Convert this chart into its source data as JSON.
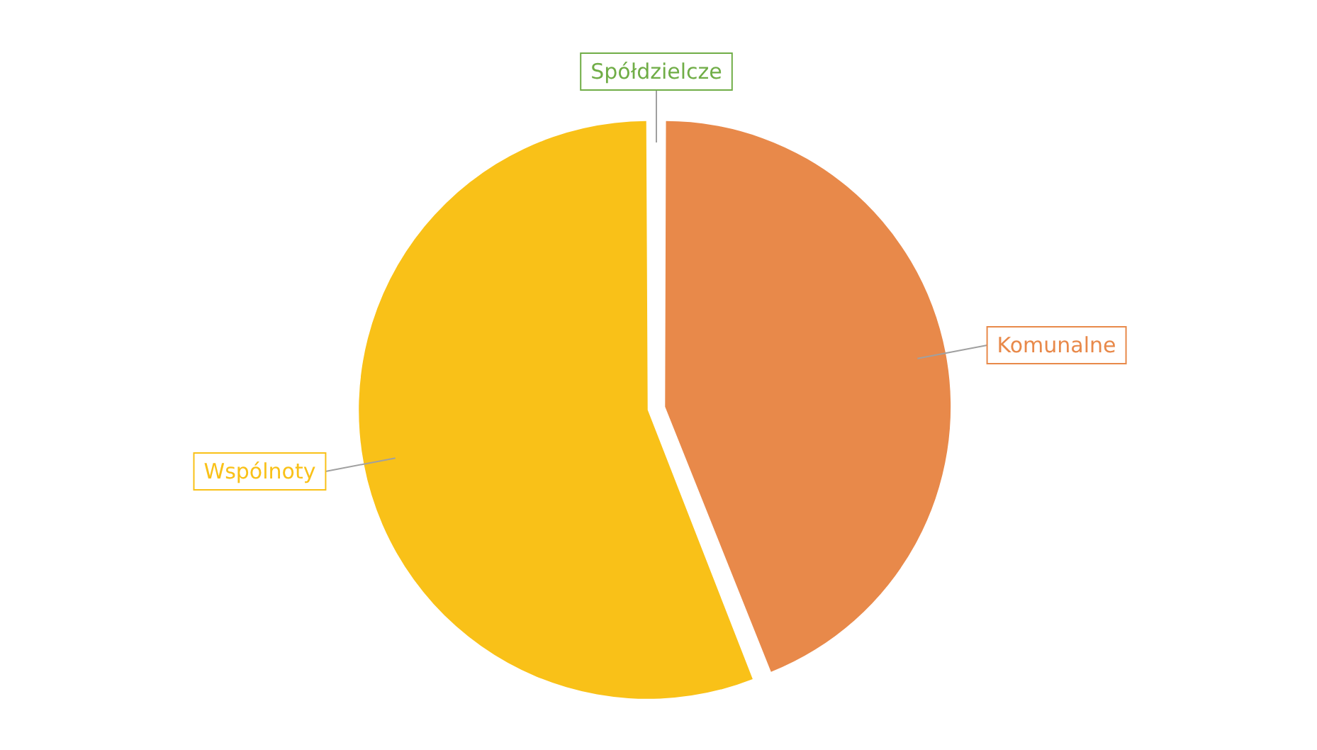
{
  "chart_data": {
    "type": "pie",
    "categories": [
      "Komunalne",
      "Wspólnoty",
      "Spółdzielcze"
    ],
    "values": [
      44,
      56,
      0
    ],
    "colors": [
      "#e8894a",
      "#f9c118",
      "#70ad47"
    ],
    "legend": false
  }
}
